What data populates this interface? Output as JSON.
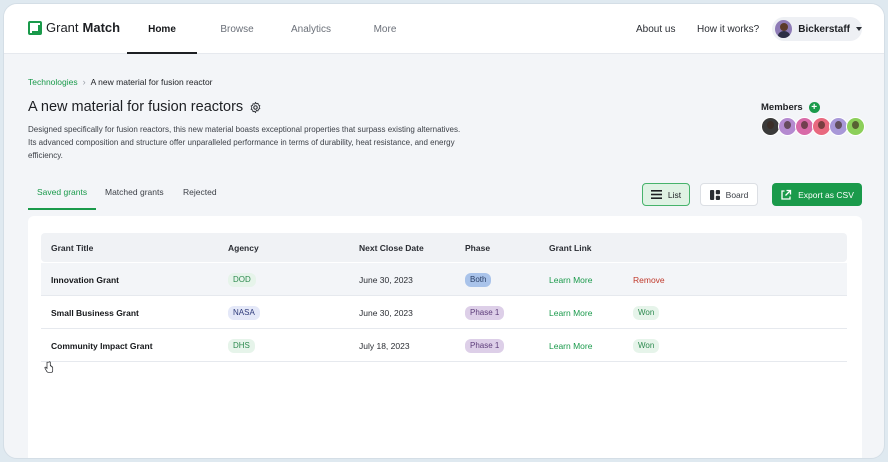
{
  "app": {
    "logo_prefix": "Grant",
    "logo_suffix": "Match"
  },
  "nav": {
    "tabs": [
      {
        "label": "Home",
        "active": true
      },
      {
        "label": "Browse"
      },
      {
        "label": "Analytics"
      },
      {
        "label": "More"
      }
    ],
    "about_label": "About us",
    "how_label": "How it works?",
    "user_name": "Bickerstaff"
  },
  "breadcrumb": {
    "root": "Technologies",
    "current": "A new material for fusion reactor"
  },
  "page": {
    "title": "A new material for fusion reactors",
    "description": "Designed specifically for fusion reactors, this new material boasts exceptional properties that surpass existing alternatives. Its advanced composition and structure offer unparalleled performance in terms of durability, heat resistance, and energy efficiency."
  },
  "members": {
    "label": "Members",
    "avatar_colors": [
      "#3a3a3a",
      "#b48ad0",
      "#d86aa8",
      "#e8697f",
      "#a898d8",
      "#8ccf5a"
    ]
  },
  "tabs": [
    {
      "label": "Saved grants",
      "active": true
    },
    {
      "label": "Matched grants"
    },
    {
      "label": "Rejected"
    }
  ],
  "view_buttons": {
    "list": "List",
    "board": "Board",
    "export": "Export as CSV"
  },
  "table": {
    "headers": [
      "Grant Title",
      "Agency",
      "Next Close Date",
      "Phase",
      "Grant Link"
    ],
    "rows": [
      {
        "title": "Innovation Grant",
        "agency": "DOD",
        "agency_bg": "#e6f4ea",
        "agency_fg": "#2d8a4f",
        "date": "June 30, 2023",
        "phase": "Both",
        "phase_bg": "#a9c3ea",
        "phase_fg": "#2a3f66",
        "link": "Learn More",
        "action": "Remove",
        "action_type": "remove"
      },
      {
        "title": "Small Business Grant",
        "agency": "NASA",
        "agency_bg": "#e4e8f8",
        "agency_fg": "#2e3a7a",
        "date": "June 30, 2023",
        "phase": "Phase 1",
        "phase_bg": "#ddcfe8",
        "phase_fg": "#5d3d7a",
        "link": "Learn More",
        "action": "Won",
        "action_type": "won"
      },
      {
        "title": "Community Impact Grant",
        "agency": "DHS",
        "agency_bg": "#e6f4ea",
        "agency_fg": "#2d8a4f",
        "date": "July 18, 2023",
        "phase": "Phase 1",
        "phase_bg": "#ddcfe8",
        "phase_fg": "#5d3d7a",
        "link": "Learn More",
        "action": "Won",
        "action_type": "won"
      }
    ]
  }
}
